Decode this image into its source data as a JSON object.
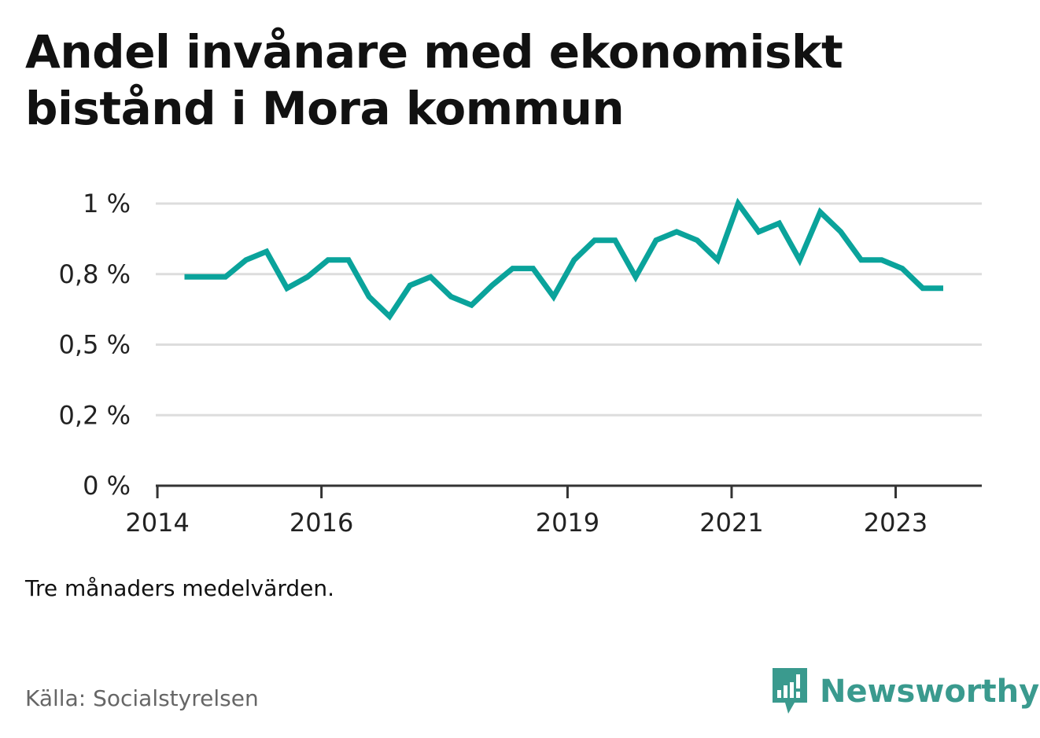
{
  "title": "Andel invånare med ekonomiskt bistånd i Mora kommun",
  "note": "Tre månaders medelvärden.",
  "source": "Källa: Socialstyrelsen",
  "brand": {
    "name": "Newsworthy",
    "icon": "newsworthy-logo-icon",
    "color": "#3a9a8e"
  },
  "chart_data": {
    "type": "line",
    "x": [
      2014.33,
      2014.58,
      2014.83,
      2015.08,
      2015.33,
      2015.58,
      2015.83,
      2016.08,
      2016.33,
      2016.58,
      2016.83,
      2017.08,
      2017.33,
      2017.58,
      2017.83,
      2018.08,
      2018.33,
      2018.58,
      2018.83,
      2019.08,
      2019.33,
      2019.58,
      2019.83,
      2020.08,
      2020.33,
      2020.58,
      2020.83,
      2021.08,
      2021.33,
      2021.58,
      2021.83,
      2022.08,
      2022.33,
      2022.58,
      2022.83,
      2023.08,
      2023.33,
      2023.58
    ],
    "series": [
      {
        "color": "#0aa39b",
        "values": [
          0.74,
          0.74,
          0.74,
          0.8,
          0.83,
          0.7,
          0.74,
          0.8,
          0.8,
          0.67,
          0.6,
          0.71,
          0.74,
          0.67,
          0.64,
          0.71,
          0.77,
          0.77,
          0.67,
          0.8,
          0.87,
          0.87,
          0.74,
          0.87,
          0.9,
          0.87,
          0.8,
          1.0,
          0.9,
          0.93,
          0.8,
          0.97,
          0.9,
          0.8,
          0.8,
          0.77,
          0.7,
          0.7
        ]
      }
    ],
    "y_ticks": [
      {
        "value": 0,
        "label": "0 %"
      },
      {
        "value": 0.25,
        "label": "0,2 %"
      },
      {
        "value": 0.5,
        "label": "0,5 %"
      },
      {
        "value": 0.75,
        "label": "0,8 %"
      },
      {
        "value": 1.0,
        "label": "1 %"
      }
    ],
    "x_ticks": [
      {
        "value": 2014,
        "label": "2014"
      },
      {
        "value": 2016,
        "label": "2016"
      },
      {
        "value": 2019,
        "label": "2019"
      },
      {
        "value": 2021,
        "label": "2021"
      },
      {
        "value": 2023,
        "label": "2023"
      }
    ],
    "xlim": [
      2013.98,
      2024.05
    ],
    "ylim": [
      0,
      1.0
    ],
    "grid": true,
    "legend": "none",
    "colors": {
      "line": "#0aa39b",
      "grid": "#dddddd",
      "axis": "#333333"
    }
  }
}
